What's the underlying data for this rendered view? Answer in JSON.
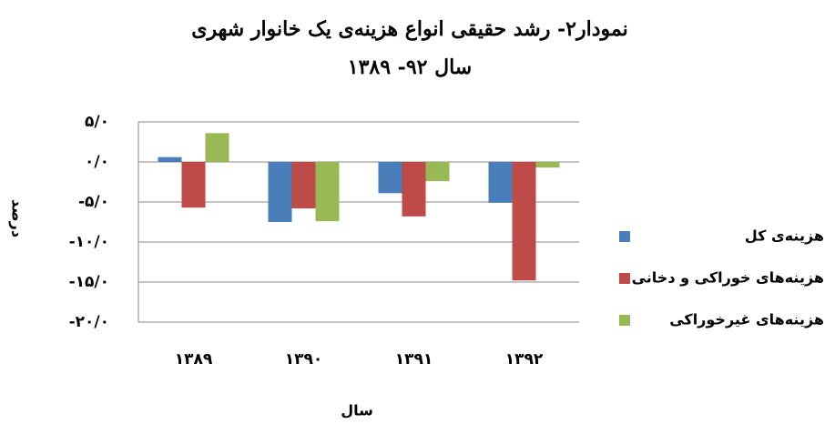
{
  "chart_data": {
    "type": "bar",
    "title": "نمودار۲- رشد حقیقی انواع هزینه‌ی یک خانوار شهری",
    "subtitle": "سال ۹۲- ۱۳۸۹",
    "y_label": "درصد",
    "x_label": "سال",
    "categories": [
      "۱۳۸۹",
      "۱۳۹۰",
      "۱۳۹۱",
      "۱۳۹۲"
    ],
    "series": [
      {
        "name": "هزینه‌ی کل",
        "color": "#4a7ebb",
        "values": [
          0.6,
          -7.5,
          -3.9,
          -5.1
        ]
      },
      {
        "name": "هزینه‌های خوراکی و دخانی",
        "color": "#be4b48",
        "values": [
          -5.7,
          -5.8,
          -6.8,
          -14.8
        ]
      },
      {
        "name": "هزینه‌های غیرخوراکی",
        "color": "#98b954",
        "values": [
          3.6,
          -7.4,
          -2.4,
          -0.7
        ]
      }
    ],
    "ylim": [
      -20,
      5
    ],
    "yticks": [
      {
        "value": 5,
        "label": "۵/۰"
      },
      {
        "value": 0,
        "label": "۰/۰"
      },
      {
        "value": -5,
        "label": "-۵/۰"
      },
      {
        "value": -10,
        "label": "-۱۰/۰"
      },
      {
        "value": -15,
        "label": "-۱۵/۰"
      },
      {
        "value": -20,
        "label": "-۲۰/۰"
      }
    ],
    "grid": true,
    "legend": "right"
  }
}
